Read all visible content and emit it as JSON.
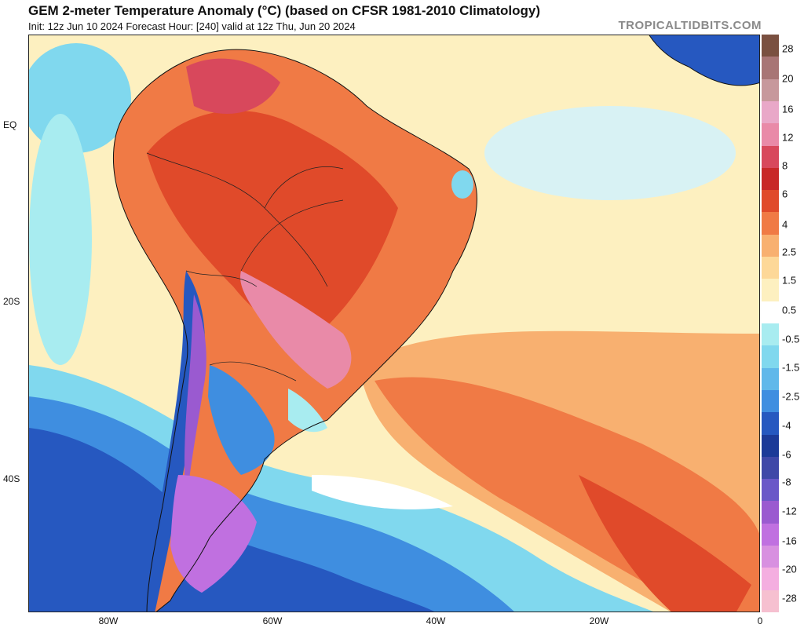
{
  "header": {
    "title": "GEM 2-meter Temperature Anomaly (°C) (based on CFSR 1981-2010 Climatology)",
    "subtitle": "Init: 12z Jun 10 2024   Forecast Hour: [240]   valid at 12z Thu, Jun 20 2024",
    "credit": "TROPICALTIDBITS.COM"
  },
  "axes": {
    "lat_labels": [
      "EQ",
      "20S",
      "40S"
    ],
    "lon_labels": [
      "80W",
      "60W",
      "40W",
      "20W",
      "0"
    ]
  },
  "colorbar": {
    "labels": [
      "28",
      "20",
      "16",
      "12",
      "8",
      "6",
      "4",
      "2.5",
      "1.5",
      "0.5",
      "-0.5",
      "-1.5",
      "-2.5",
      "-4",
      "-6",
      "-8",
      "-12",
      "-16",
      "-20",
      "-28"
    ],
    "colors": [
      "#7a5040",
      "#a87575",
      "#c7989c",
      "#e9a8c8",
      "#e98aa8",
      "#d8485c",
      "#c82828",
      "#e04a2a",
      "#f07a45",
      "#f8b070",
      "#fdd898",
      "#fdf0c0",
      "#ffffff",
      "#a8ecf0",
      "#80d8ee",
      "#60b8ea",
      "#3f8ee0",
      "#2658c0",
      "#1c3a98",
      "#3f48a8",
      "#6a58c8",
      "#9a5ad0",
      "#c070e0",
      "#d890e0",
      "#f4aee0",
      "#f6c0d0"
    ]
  },
  "map": {
    "colors": {
      "ocean_neutral": "#fdf0c0",
      "warm_ocean": "#f8b070",
      "warm_land": "#f07a45",
      "hot_land": "#d8485c",
      "very_hot": "#c82828",
      "pink_anomaly": "#e98aa8",
      "cool_ocean": "#60b8ea",
      "cold_ocean": "#2658c0",
      "very_cold": "#1c3a98",
      "purple_cold": "#9a5ad0",
      "magenta_cold": "#c070e0",
      "white": "#ffffff",
      "border": "#111111"
    }
  }
}
